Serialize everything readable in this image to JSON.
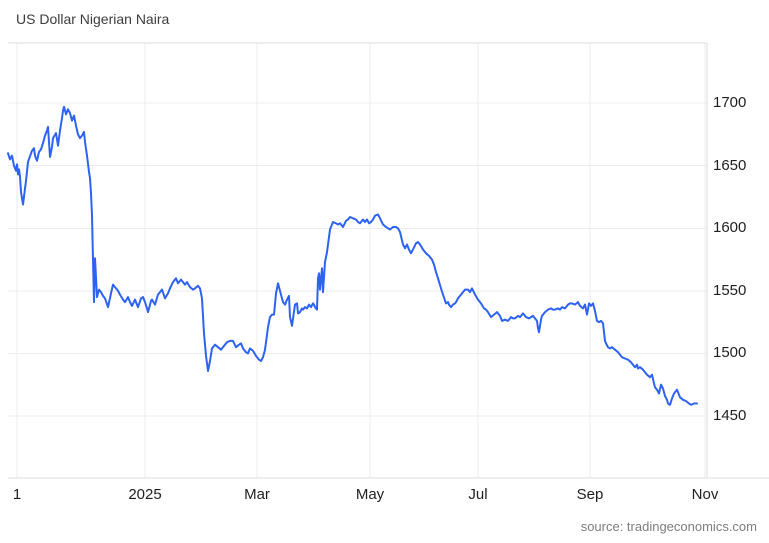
{
  "header": {
    "title": "US Dollar Nigerian Naira"
  },
  "source": {
    "text": "source: tradingeconomics.com"
  },
  "colors": {
    "line": "#2d63f0",
    "grid": "#ececec",
    "border": "#dcdcdc",
    "title_text": "#3d3d3d",
    "axis_text": "#1f1f1f",
    "source_text": "#7d7d7d",
    "background": "#ffffff"
  },
  "chart_data": {
    "type": "line",
    "title": "US Dollar Nigerian Naira",
    "xlabel": "",
    "ylabel": "",
    "legend": false,
    "grid": true,
    "y_ticks": [
      1450,
      1500,
      1550,
      1600,
      1650,
      1700
    ],
    "ylim": [
      1400.5,
      1748
    ],
    "xlim": [
      0,
      699
    ],
    "x_ticks": [
      {
        "pos": 9,
        "label": "1"
      },
      {
        "pos": 137,
        "label": "2025"
      },
      {
        "pos": 249,
        "label": "Mar"
      },
      {
        "pos": 362,
        "label": "May"
      },
      {
        "pos": 470,
        "label": "Jul"
      },
      {
        "pos": 582,
        "label": "Sep"
      },
      {
        "pos": 697,
        "label": "Nov"
      }
    ],
    "points": [
      [
        0,
        1660
      ],
      [
        2,
        1655
      ],
      [
        4,
        1658
      ],
      [
        6,
        1650
      ],
      [
        8,
        1646
      ],
      [
        9,
        1651
      ],
      [
        10,
        1643
      ],
      [
        11,
        1647
      ],
      [
        12,
        1641
      ],
      [
        13,
        1629
      ],
      [
        15,
        1619
      ],
      [
        18,
        1638
      ],
      [
        20,
        1653
      ],
      [
        24,
        1662
      ],
      [
        26,
        1664
      ],
      [
        27,
        1658
      ],
      [
        29,
        1654
      ],
      [
        31,
        1661
      ],
      [
        33,
        1663
      ],
      [
        35,
        1668
      ],
      [
        37,
        1674
      ],
      [
        39,
        1678
      ],
      [
        40,
        1681
      ],
      [
        42,
        1657
      ],
      [
        44,
        1665
      ],
      [
        45,
        1672
      ],
      [
        48,
        1676
      ],
      [
        50,
        1666
      ],
      [
        52,
        1678
      ],
      [
        54,
        1688
      ],
      [
        55,
        1694
      ],
      [
        56,
        1697
      ],
      [
        58,
        1691
      ],
      [
        60,
        1695
      ],
      [
        62,
        1692
      ],
      [
        64,
        1686
      ],
      [
        66,
        1690
      ],
      [
        68,
        1682
      ],
      [
        70,
        1675
      ],
      [
        72,
        1672
      ],
      [
        74,
        1674
      ],
      [
        76,
        1677
      ],
      [
        77,
        1669
      ],
      [
        79,
        1658
      ],
      [
        81,
        1645
      ],
      [
        82,
        1640
      ],
      [
        83,
        1628
      ],
      [
        84,
        1610
      ],
      [
        85,
        1575
      ],
      [
        86,
        1541
      ],
      [
        87,
        1576
      ],
      [
        89,
        1545
      ],
      [
        91,
        1551
      ],
      [
        93,
        1549
      ],
      [
        95,
        1546
      ],
      [
        97,
        1544
      ],
      [
        100,
        1537
      ],
      [
        103,
        1548
      ],
      [
        105,
        1555
      ],
      [
        108,
        1552
      ],
      [
        110,
        1550
      ],
      [
        112,
        1547
      ],
      [
        115,
        1543
      ],
      [
        117,
        1541
      ],
      [
        120,
        1545
      ],
      [
        122,
        1541
      ],
      [
        124,
        1538
      ],
      [
        127,
        1543
      ],
      [
        129,
        1539
      ],
      [
        130,
        1537
      ],
      [
        133,
        1544
      ],
      [
        135,
        1545
      ],
      [
        137,
        1541
      ],
      [
        139,
        1536
      ],
      [
        140,
        1533
      ],
      [
        143,
        1542
      ],
      [
        144,
        1543
      ],
      [
        147,
        1539
      ],
      [
        150,
        1547
      ],
      [
        153,
        1550
      ],
      [
        154,
        1551
      ],
      [
        157,
        1544
      ],
      [
        160,
        1548
      ],
      [
        162,
        1552
      ],
      [
        165,
        1557
      ],
      [
        168,
        1560
      ],
      [
        170,
        1556
      ],
      [
        173,
        1559
      ],
      [
        175,
        1557
      ],
      [
        177,
        1555
      ],
      [
        179,
        1557
      ],
      [
        182,
        1553
      ],
      [
        185,
        1551
      ],
      [
        187,
        1552
      ],
      [
        190,
        1554
      ],
      [
        192,
        1552
      ],
      [
        194,
        1544
      ],
      [
        196,
        1516
      ],
      [
        198,
        1498
      ],
      [
        200,
        1486
      ],
      [
        202,
        1494
      ],
      [
        204,
        1504
      ],
      [
        207,
        1507
      ],
      [
        210,
        1505
      ],
      [
        213,
        1503
      ],
      [
        216,
        1506
      ],
      [
        219,
        1509
      ],
      [
        222,
        1510
      ],
      [
        225,
        1510
      ],
      [
        228,
        1505
      ],
      [
        231,
        1507
      ],
      [
        233,
        1508
      ],
      [
        235,
        1504
      ],
      [
        238,
        1501
      ],
      [
        240,
        1500
      ],
      [
        242,
        1504
      ],
      [
        245,
        1502
      ],
      [
        248,
        1498
      ],
      [
        251,
        1495
      ],
      [
        253,
        1494
      ],
      [
        255,
        1497
      ],
      [
        257,
        1503
      ],
      [
        260,
        1521
      ],
      [
        262,
        1529
      ],
      [
        264,
        1531
      ],
      [
        266,
        1531
      ],
      [
        268,
        1548
      ],
      [
        270,
        1556
      ],
      [
        271,
        1553
      ],
      [
        273,
        1547
      ],
      [
        275,
        1541
      ],
      [
        277,
        1539
      ],
      [
        279,
        1543
      ],
      [
        281,
        1546
      ],
      [
        282,
        1529
      ],
      [
        284,
        1522
      ],
      [
        287,
        1539
      ],
      [
        289,
        1540
      ],
      [
        290,
        1532
      ],
      [
        292,
        1533
      ],
      [
        294,
        1536
      ],
      [
        295,
        1535
      ],
      [
        297,
        1537
      ],
      [
        299,
        1536
      ],
      [
        301,
        1539
      ],
      [
        303,
        1537
      ],
      [
        305,
        1540
      ],
      [
        306,
        1539
      ],
      [
        307,
        1537
      ],
      [
        309,
        1535
      ],
      [
        310,
        1560
      ],
      [
        311,
        1564
      ],
      [
        312,
        1551
      ],
      [
        314,
        1568
      ],
      [
        315,
        1549
      ],
      [
        317,
        1573
      ],
      [
        319,
        1581
      ],
      [
        322,
        1599
      ],
      [
        325,
        1605
      ],
      [
        328,
        1604
      ],
      [
        330,
        1603
      ],
      [
        332,
        1604
      ],
      [
        335,
        1601
      ],
      [
        338,
        1606
      ],
      [
        340,
        1607
      ],
      [
        342,
        1609
      ],
      [
        345,
        1608
      ],
      [
        348,
        1607
      ],
      [
        350,
        1605
      ],
      [
        352,
        1604
      ],
      [
        355,
        1607
      ],
      [
        357,
        1605
      ],
      [
        359,
        1607
      ],
      [
        361,
        1604
      ],
      [
        363,
        1605
      ],
      [
        365,
        1607
      ],
      [
        367,
        1610
      ],
      [
        370,
        1611
      ],
      [
        372,
        1608
      ],
      [
        375,
        1603
      ],
      [
        378,
        1601
      ],
      [
        380,
        1600
      ],
      [
        382,
        1599
      ],
      [
        385,
        1601
      ],
      [
        388,
        1601
      ],
      [
        390,
        1600
      ],
      [
        392,
        1597
      ],
      [
        395,
        1587
      ],
      [
        397,
        1584
      ],
      [
        399,
        1587
      ],
      [
        401,
        1583
      ],
      [
        403,
        1580
      ],
      [
        405,
        1583
      ],
      [
        408,
        1588
      ],
      [
        410,
        1589
      ],
      [
        412,
        1587
      ],
      [
        415,
        1583
      ],
      [
        418,
        1580
      ],
      [
        421,
        1578
      ],
      [
        424,
        1575
      ],
      [
        426,
        1571
      ],
      [
        428,
        1565
      ],
      [
        430,
        1560
      ],
      [
        433,
        1552
      ],
      [
        435,
        1547
      ],
      [
        438,
        1540
      ],
      [
        440,
        1541
      ],
      [
        441,
        1539
      ],
      [
        443,
        1537
      ],
      [
        445,
        1539
      ],
      [
        447,
        1540
      ],
      [
        448,
        1541
      ],
      [
        450,
        1544
      ],
      [
        453,
        1547
      ],
      [
        457,
        1551
      ],
      [
        460,
        1551
      ],
      [
        462,
        1549
      ],
      [
        464,
        1552
      ],
      [
        467,
        1547
      ],
      [
        470,
        1543
      ],
      [
        473,
        1540
      ],
      [
        476,
        1536
      ],
      [
        478,
        1535
      ],
      [
        480,
        1533
      ],
      [
        483,
        1529
      ],
      [
        486,
        1531
      ],
      [
        489,
        1533
      ],
      [
        492,
        1530
      ],
      [
        494,
        1526
      ],
      [
        497,
        1527
      ],
      [
        500,
        1526
      ],
      [
        503,
        1529
      ],
      [
        505,
        1528
      ],
      [
        507,
        1528
      ],
      [
        510,
        1530
      ],
      [
        512,
        1529
      ],
      [
        515,
        1532
      ],
      [
        518,
        1529
      ],
      [
        521,
        1528
      ],
      [
        523,
        1529
      ],
      [
        525,
        1530
      ],
      [
        527,
        1528
      ],
      [
        529,
        1526
      ],
      [
        530,
        1520
      ],
      [
        531,
        1517
      ],
      [
        533,
        1527
      ],
      [
        534,
        1530
      ],
      [
        537,
        1533
      ],
      [
        540,
        1535
      ],
      [
        543,
        1536
      ],
      [
        545,
        1535
      ],
      [
        547,
        1535
      ],
      [
        550,
        1536
      ],
      [
        552,
        1535
      ],
      [
        554,
        1537
      ],
      [
        557,
        1536
      ],
      [
        560,
        1539
      ],
      [
        562,
        1540
      ],
      [
        564,
        1540
      ],
      [
        567,
        1539
      ],
      [
        570,
        1541
      ],
      [
        572,
        1538
      ],
      [
        575,
        1536
      ],
      [
        577,
        1539
      ],
      [
        579,
        1531
      ],
      [
        581,
        1540
      ],
      [
        583,
        1538
      ],
      [
        585,
        1540
      ],
      [
        587,
        1534
      ],
      [
        589,
        1526
      ],
      [
        591,
        1525
      ],
      [
        593,
        1526
      ],
      [
        595,
        1524
      ],
      [
        597,
        1510
      ],
      [
        598,
        1508
      ],
      [
        600,
        1505
      ],
      [
        602,
        1504
      ],
      [
        604,
        1505
      ],
      [
        607,
        1503
      ],
      [
        610,
        1501
      ],
      [
        612,
        1499
      ],
      [
        614,
        1497
      ],
      [
        617,
        1496
      ],
      [
        620,
        1495
      ],
      [
        623,
        1493
      ],
      [
        625,
        1491
      ],
      [
        627,
        1489
      ],
      [
        629,
        1491
      ],
      [
        630,
        1488
      ],
      [
        632,
        1489
      ],
      [
        635,
        1487
      ],
      [
        637,
        1485
      ],
      [
        639,
        1483
      ],
      [
        642,
        1481
      ],
      [
        644,
        1483
      ],
      [
        646,
        1476
      ],
      [
        647,
        1473
      ],
      [
        649,
        1471
      ],
      [
        651,
        1468
      ],
      [
        653,
        1475
      ],
      [
        655,
        1472
      ],
      [
        657,
        1466
      ],
      [
        659,
        1463
      ],
      [
        660,
        1460
      ],
      [
        662,
        1459
      ],
      [
        664,
        1464
      ],
      [
        666,
        1468
      ],
      [
        668,
        1470
      ],
      [
        669,
        1471
      ],
      [
        671,
        1467
      ],
      [
        672,
        1465
      ],
      [
        675,
        1463
      ],
      [
        678,
        1462
      ],
      [
        681,
        1460
      ],
      [
        683,
        1459
      ],
      [
        686,
        1460
      ],
      [
        689,
        1460
      ]
    ]
  }
}
